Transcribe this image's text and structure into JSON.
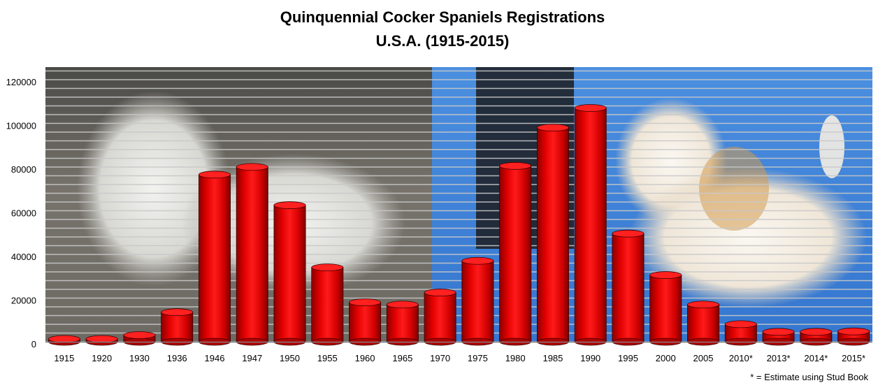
{
  "chart_data": {
    "type": "bar",
    "title": "Quinquennial Cocker Spaniels Registrations",
    "subtitle": "U.S.A. (1915-2015)",
    "xlabel": "",
    "ylabel": "",
    "ylim": [
      0,
      125000
    ],
    "yticks": [
      0,
      20000,
      40000,
      60000,
      80000,
      100000,
      120000
    ],
    "grid": true,
    "categories": [
      "1915",
      "1920",
      "1930",
      "1936",
      "1946",
      "1947",
      "1950",
      "1955",
      "1960",
      "1965",
      "1970",
      "1975",
      "1980",
      "1985",
      "1990",
      "1995",
      "2000",
      "2005",
      "2010*",
      "2013*",
      "2014*",
      "2015*"
    ],
    "values": [
      2000,
      1700,
      4000,
      14500,
      77500,
      81000,
      63500,
      35000,
      19000,
      18000,
      23500,
      38000,
      81500,
      99000,
      108000,
      50500,
      31500,
      18000,
      9000,
      5500,
      5500,
      5700
    ],
    "bar_color": "#ff0000",
    "footnote": "* = Estimate using Stud Book"
  }
}
